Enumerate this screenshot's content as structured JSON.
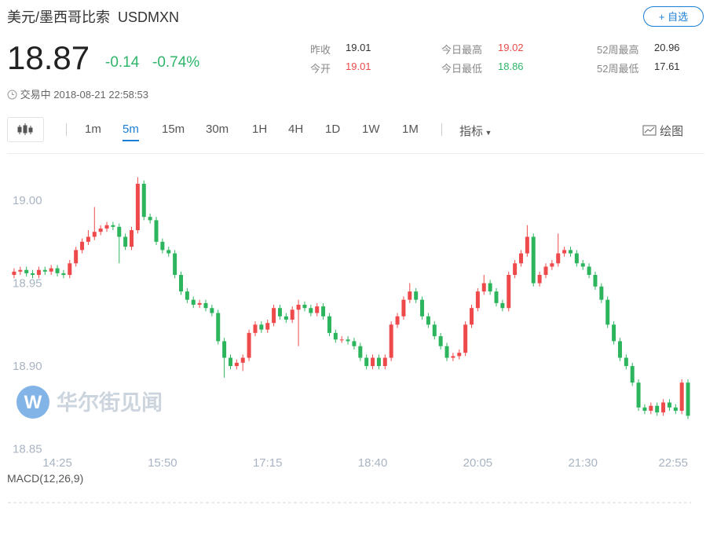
{
  "header": {
    "name": "美元/墨西哥比索",
    "symbol": "USDMXN",
    "watch_button": "+ 自选",
    "price": "18.87",
    "change": "-0.14",
    "change_pct": "-0.74%",
    "status": "交易中",
    "time": "2018-08-21 22:58:53",
    "stats": [
      {
        "label": "昨收",
        "value": "19.01"
      },
      {
        "label": "今开",
        "value": "19.01"
      },
      {
        "label": "今日最高",
        "value": "19.02"
      },
      {
        "label": "今日最低",
        "value": "18.86"
      },
      {
        "label": "52周最高",
        "value": "20.96"
      },
      {
        "label": "52周最低",
        "value": "17.61"
      }
    ]
  },
  "toolbar": {
    "periods": [
      "1m",
      "5m",
      "15m",
      "30m",
      "1H",
      "4H",
      "1D",
      "1W",
      "1M"
    ],
    "indicator": "指标",
    "draw": "绘图"
  },
  "watermark": "华尔街见闻",
  "chart_data": {
    "type": "candlestick",
    "up_color": "#ef4a4b",
    "down_color": "#2db55d",
    "grid": false,
    "ylim": [
      18.846,
      19.028
    ],
    "yticks": [
      18.85,
      {
        "value": 18.9,
        "label": "18.90"
      },
      18.95,
      {
        "value": 19.0,
        "label": "19.00"
      }
    ],
    "categories": [
      null,
      null,
      null,
      null,
      null,
      null,
      null,
      "14:25",
      null,
      null,
      null,
      null,
      null,
      null,
      null,
      null,
      null,
      null,
      null,
      null,
      null,
      null,
      null,
      null,
      "15:50",
      null,
      null,
      null,
      null,
      null,
      null,
      null,
      null,
      null,
      null,
      null,
      null,
      null,
      null,
      null,
      null,
      "17:15",
      null,
      null,
      null,
      null,
      null,
      null,
      null,
      null,
      null,
      null,
      null,
      null,
      null,
      null,
      null,
      null,
      "18:40",
      null,
      null,
      null,
      null,
      null,
      null,
      null,
      null,
      null,
      null,
      null,
      null,
      null,
      null,
      null,
      null,
      "20:05",
      null,
      null,
      null,
      null,
      null,
      null,
      null,
      null,
      null,
      null,
      null,
      null,
      null,
      null,
      null,
      null,
      "21:30",
      null,
      null,
      null,
      null,
      null,
      null,
      null,
      null,
      null,
      null,
      null,
      null,
      null,
      null,
      null,
      null,
      "22:55"
    ],
    "open": [
      18.955,
      18.957,
      18.958,
      18.956,
      18.955,
      18.958,
      18.957,
      18.959,
      18.956,
      18.955,
      18.962,
      18.97,
      18.975,
      18.978,
      18.981,
      18.983,
      18.985,
      18.984,
      18.978,
      18.972,
      18.982,
      19.01,
      18.99,
      18.988,
      18.975,
      18.97,
      18.968,
      18.955,
      18.945,
      18.94,
      18.937,
      18.938,
      18.935,
      18.932,
      18.915,
      18.905,
      18.9,
      18.902,
      18.905,
      18.92,
      18.925,
      18.922,
      18.926,
      18.935,
      18.93,
      18.928,
      18.934,
      18.937,
      18.935,
      18.932,
      18.936,
      18.93,
      18.92,
      18.916,
      18.916,
      18.915,
      18.912,
      18.905,
      18.9,
      18.905,
      18.9,
      18.905,
      18.925,
      18.93,
      18.94,
      18.945,
      18.94,
      18.93,
      18.925,
      18.918,
      18.912,
      18.905,
      18.906,
      18.908,
      18.925,
      18.935,
      18.945,
      18.95,
      18.945,
      18.938,
      18.935,
      18.955,
      18.962,
      18.968,
      18.978,
      18.95,
      18.955,
      18.96,
      18.962,
      18.968,
      18.97,
      18.968,
      18.962,
      18.96,
      18.955,
      18.948,
      18.94,
      18.925,
      18.915,
      18.905,
      18.9,
      18.89,
      18.875,
      18.873,
      18.876,
      18.872,
      18.878,
      18.875,
      18.873,
      18.89
    ],
    "high": [
      18.959,
      18.96,
      18.96,
      18.958,
      18.96,
      18.96,
      18.961,
      18.961,
      18.958,
      18.964,
      18.972,
      18.977,
      18.982,
      18.996,
      18.985,
      18.987,
      18.987,
      18.986,
      18.98,
      18.984,
      19.014,
      19.012,
      18.992,
      18.99,
      18.977,
      18.972,
      18.97,
      18.957,
      18.947,
      18.942,
      18.94,
      18.94,
      18.937,
      18.934,
      18.917,
      18.907,
      18.904,
      18.907,
      18.922,
      18.927,
      18.927,
      18.928,
      18.937,
      18.937,
      18.932,
      18.936,
      18.94,
      18.939,
      18.937,
      18.938,
      18.938,
      18.932,
      18.922,
      18.918,
      18.918,
      18.917,
      18.914,
      18.907,
      18.907,
      18.907,
      18.907,
      18.927,
      18.932,
      18.942,
      18.95,
      18.947,
      18.942,
      18.932,
      18.927,
      18.92,
      18.914,
      18.908,
      18.91,
      18.927,
      18.937,
      18.947,
      18.955,
      18.952,
      18.947,
      18.94,
      18.957,
      18.964,
      18.97,
      18.985,
      18.98,
      18.957,
      18.962,
      18.964,
      18.98,
      18.972,
      18.972,
      18.97,
      18.964,
      18.962,
      18.957,
      18.95,
      18.942,
      18.927,
      18.917,
      18.907,
      18.902,
      18.892,
      18.877,
      18.878,
      18.878,
      18.88,
      18.88,
      18.877,
      18.892,
      18.892
    ],
    "low": [
      18.953,
      18.955,
      18.954,
      18.953,
      18.953,
      18.955,
      18.955,
      18.954,
      18.953,
      18.953,
      18.96,
      18.968,
      18.973,
      18.976,
      18.979,
      18.981,
      18.982,
      18.962,
      18.97,
      18.97,
      18.98,
      18.988,
      18.986,
      18.973,
      18.968,
      18.966,
      18.953,
      18.943,
      18.938,
      18.935,
      18.935,
      18.933,
      18.93,
      18.913,
      18.893,
      18.898,
      18.898,
      18.897,
      18.903,
      18.918,
      18.92,
      18.92,
      18.924,
      18.928,
      18.926,
      18.926,
      18.912,
      18.933,
      18.93,
      18.93,
      18.928,
      18.918,
      18.914,
      18.914,
      18.913,
      18.91,
      18.903,
      18.898,
      18.898,
      18.898,
      18.898,
      18.903,
      18.923,
      18.928,
      18.938,
      18.938,
      18.928,
      18.923,
      18.916,
      18.91,
      18.903,
      18.903,
      18.904,
      18.906,
      18.923,
      18.933,
      18.943,
      18.943,
      18.936,
      18.933,
      18.933,
      18.953,
      18.96,
      18.966,
      18.948,
      18.948,
      18.953,
      18.958,
      18.96,
      18.966,
      18.966,
      18.96,
      18.958,
      18.953,
      18.946,
      18.938,
      18.923,
      18.913,
      18.903,
      18.898,
      18.888,
      18.873,
      18.871,
      18.871,
      18.87,
      18.87,
      18.873,
      18.871,
      18.871,
      18.868
    ],
    "close": [
      18.957,
      18.958,
      18.956,
      18.955,
      18.958,
      18.957,
      18.959,
      18.956,
      18.955,
      18.962,
      18.97,
      18.975,
      18.978,
      18.981,
      18.983,
      18.985,
      18.984,
      18.978,
      18.972,
      18.982,
      19.01,
      18.99,
      18.988,
      18.975,
      18.97,
      18.968,
      18.955,
      18.945,
      18.94,
      18.937,
      18.938,
      18.935,
      18.932,
      18.915,
      18.905,
      18.9,
      18.902,
      18.905,
      18.92,
      18.925,
      18.922,
      18.926,
      18.935,
      18.93,
      18.928,
      18.934,
      18.937,
      18.935,
      18.932,
      18.936,
      18.93,
      18.92,
      18.916,
      18.916,
      18.915,
      18.912,
      18.905,
      18.9,
      18.905,
      18.9,
      18.905,
      18.925,
      18.93,
      18.94,
      18.945,
      18.94,
      18.93,
      18.925,
      18.918,
      18.912,
      18.905,
      18.906,
      18.908,
      18.925,
      18.935,
      18.945,
      18.95,
      18.945,
      18.938,
      18.935,
      18.955,
      18.962,
      18.968,
      18.978,
      18.95,
      18.955,
      18.96,
      18.962,
      18.968,
      18.97,
      18.968,
      18.962,
      18.96,
      18.955,
      18.948,
      18.94,
      18.925,
      18.915,
      18.905,
      18.9,
      18.89,
      18.875,
      18.873,
      18.876,
      18.872,
      18.878,
      18.875,
      18.873,
      18.89,
      18.87
    ],
    "indicator_label": "MACD(12,26,9)"
  }
}
